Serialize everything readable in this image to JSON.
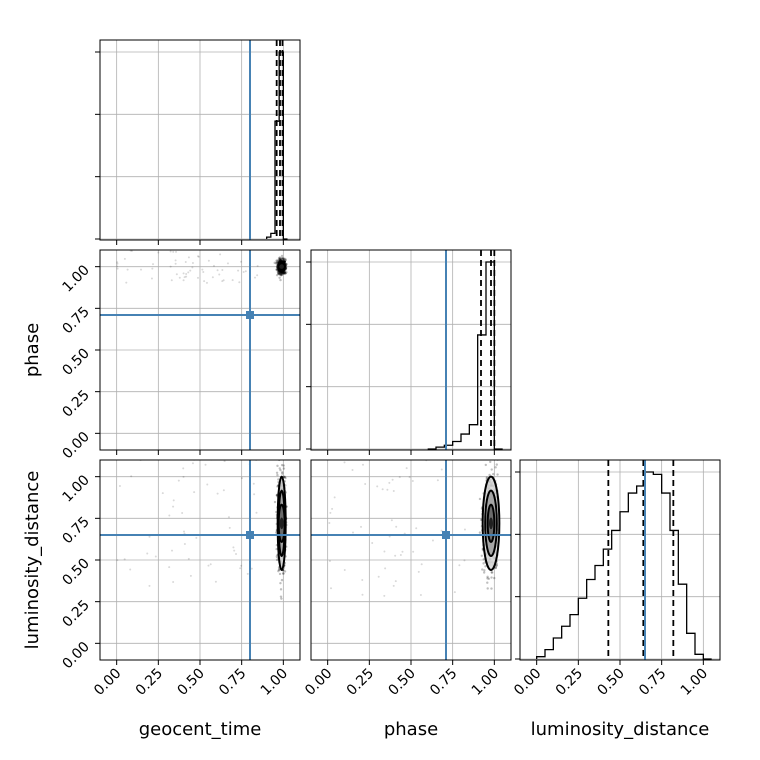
{
  "chart_data": {
    "type": "corner",
    "parameters": [
      "geocent_time",
      "phase",
      "luminosity_distance"
    ],
    "axis_labels": [
      "geocent_time",
      "phase",
      "luminosity_distance"
    ],
    "ticks": {
      "values": [
        0.0,
        0.25,
        0.5,
        0.75,
        1.0
      ],
      "labels": [
        "0.00",
        "0.25",
        "0.50",
        "0.75",
        "1.00"
      ]
    },
    "range": [
      -0.1,
      1.1
    ],
    "truth_values": {
      "geocent_time": 0.8,
      "phase": 0.71,
      "luminosity_distance": 0.65
    },
    "truth_color": "#4682b4",
    "grid": true,
    "histograms": [
      {
        "parameter": "geocent_time",
        "bin_edges": [
          0.9,
          0.925,
          0.95,
          0.975,
          1.0,
          1.025
        ],
        "counts": [
          1,
          3,
          63,
          100,
          0
        ],
        "quantiles": [
          0.96,
          0.98,
          0.995
        ]
      },
      {
        "parameter": "phase",
        "bin_edges": [
          0.6,
          0.65,
          0.7,
          0.75,
          0.8,
          0.85,
          0.9,
          0.95,
          1.0,
          1.05
        ],
        "counts": [
          0,
          1,
          2,
          4,
          8,
          13,
          61,
          100,
          0
        ],
        "quantiles": [
          0.92,
          0.98,
          1.0
        ]
      },
      {
        "parameter": "luminosity_distance",
        "bin_edges": [
          0.0,
          0.05,
          0.1,
          0.15,
          0.2,
          0.25,
          0.3,
          0.35,
          0.4,
          0.45,
          0.5,
          0.55,
          0.6,
          0.65,
          0.7,
          0.75,
          0.8,
          0.85,
          0.9,
          0.95,
          1.0,
          1.05
        ],
        "counts": [
          1,
          4,
          9,
          14,
          19,
          26,
          34,
          40,
          47,
          55,
          63,
          71,
          74,
          80,
          79,
          71,
          55,
          32,
          11,
          2,
          0
        ],
        "quantiles": [
          0.43,
          0.64,
          0.82
        ]
      }
    ],
    "pairs": [
      {
        "x": "geocent_time",
        "y": "phase",
        "center": [
          0.99,
          1.0
        ],
        "spread": [
          0.012,
          0.02
        ]
      },
      {
        "x": "geocent_time",
        "y": "luminosity_distance",
        "center": [
          0.99,
          0.72
        ],
        "spread": [
          0.012,
          0.14
        ]
      },
      {
        "x": "phase",
        "y": "luminosity_distance",
        "center": [
          0.98,
          0.72
        ],
        "spread": [
          0.025,
          0.14
        ]
      }
    ]
  }
}
